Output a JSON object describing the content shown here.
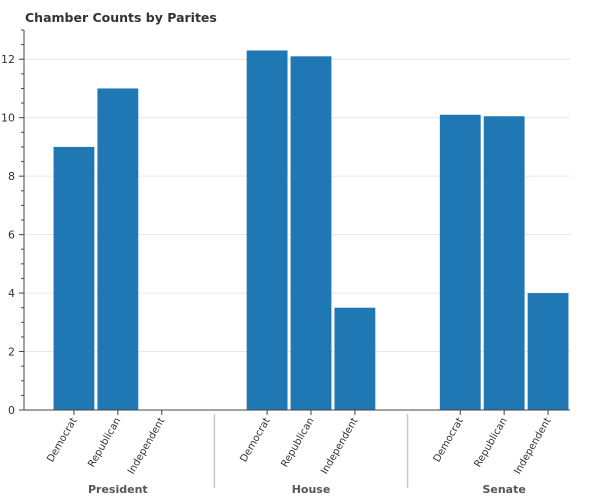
{
  "chart_data": {
    "type": "bar",
    "title": "Chamber Counts by Parites",
    "xlabel": "",
    "ylabel": "",
    "ylim": [
      0,
      13
    ],
    "yticks": [
      0,
      2,
      4,
      6,
      8,
      10,
      12
    ],
    "grid": "horizontal",
    "legend": "none",
    "bar_color": "#1f77b4",
    "groups": [
      {
        "name": "President",
        "categories": [
          "Democrat",
          "Republican",
          "Independent"
        ],
        "values": [
          9,
          11,
          0
        ]
      },
      {
        "name": "House",
        "categories": [
          "Democrat",
          "Republican",
          "Independent"
        ],
        "values": [
          12.3,
          12.1,
          3.5
        ]
      },
      {
        "name": "Senate",
        "categories": [
          "Democrat",
          "Republican",
          "Independent"
        ],
        "values": [
          10.1,
          10.05,
          4
        ]
      }
    ]
  }
}
